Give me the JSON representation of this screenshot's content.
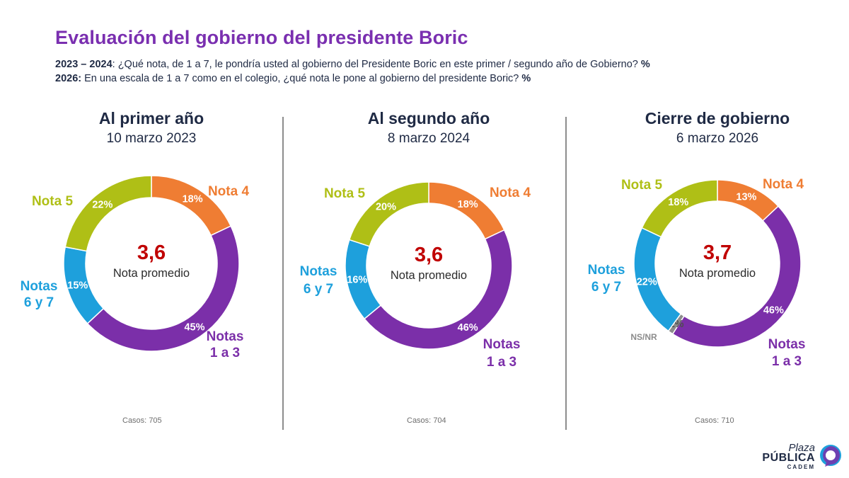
{
  "header": {
    "title": "Evaluación del gobierno del presidente Boric",
    "q1_years": "2023 – 2024",
    "q1_text": ": ¿Qué nota, de 1 a 7, le pondría usted al gobierno del Presidente Boric en este primer / segundo año de Gobierno?",
    "q1_unit": "%",
    "q2_years": "2026:",
    "q2_text": " En una escala de 1 a 7 como en el colegio, ¿qué nota le pone al gobierno del presidente Boric?",
    "q2_unit": "%"
  },
  "colors": {
    "nota_1_3": "#7b2fa9",
    "nota_4": "#ef7d33",
    "nota_5": "#afbf16",
    "nota_6_7": "#1ea0dc",
    "ns_nr": "#8c8c8c",
    "average": "#c00000",
    "title": "#7a2fb0"
  },
  "chart_data": [
    {
      "type": "pie",
      "title": "Al primer año",
      "subtitle": "10 marzo 2023",
      "center_value": "3,6",
      "center_label": "Nota promedio",
      "cases_label": "Casos:",
      "cases_value": "705",
      "slices": [
        {
          "key": "nota_4",
          "name": "Nota 4",
          "value": 18,
          "label": "18%"
        },
        {
          "key": "nota_1_3",
          "name": "Notas 1 a 3",
          "value": 45,
          "label": "45%"
        },
        {
          "key": "nota_6_7",
          "name": "Notas 6 y 7",
          "value": 15,
          "label": "15%"
        },
        {
          "key": "nota_5",
          "name": "Nota 5",
          "value": 22,
          "label": "22%"
        }
      ]
    },
    {
      "type": "pie",
      "title": "Al segundo año",
      "subtitle": "8 marzo 2024",
      "center_value": "3,6",
      "center_label": "Nota promedio",
      "cases_label": "Casos:",
      "cases_value": "704",
      "slices": [
        {
          "key": "nota_4",
          "name": "Nota 4",
          "value": 18,
          "label": "18%"
        },
        {
          "key": "nota_1_3",
          "name": "Notas 1 a 3",
          "value": 46,
          "label": "46%"
        },
        {
          "key": "nota_6_7",
          "name": "Notas 6 y 7",
          "value": 16,
          "label": "16%"
        },
        {
          "key": "nota_5",
          "name": "Nota 5",
          "value": 20,
          "label": "20%"
        }
      ]
    },
    {
      "type": "pie",
      "title": "Cierre de gobierno",
      "subtitle": "6 marzo 2026",
      "center_value": "3,7",
      "center_label": "Nota promedio",
      "cases_label": "Casos:",
      "cases_value": "710",
      "slices": [
        {
          "key": "nota_4",
          "name": "Nota 4",
          "value": 13,
          "label": "13%"
        },
        {
          "key": "nota_1_3",
          "name": "Notas 1 a 3",
          "value": 46,
          "label": "46%"
        },
        {
          "key": "ns_nr",
          "name": "NS/NR",
          "value": 1,
          "label": "1%"
        },
        {
          "key": "nota_6_7",
          "name": "Notas 6 y 7",
          "value": 22,
          "label": "22%"
        },
        {
          "key": "nota_5",
          "name": "Nota 5",
          "value": 18,
          "label": "18%"
        }
      ]
    }
  ],
  "logo": {
    "line1": "Plaza",
    "line2": "PÚBLICA",
    "line3": "CADEM"
  }
}
